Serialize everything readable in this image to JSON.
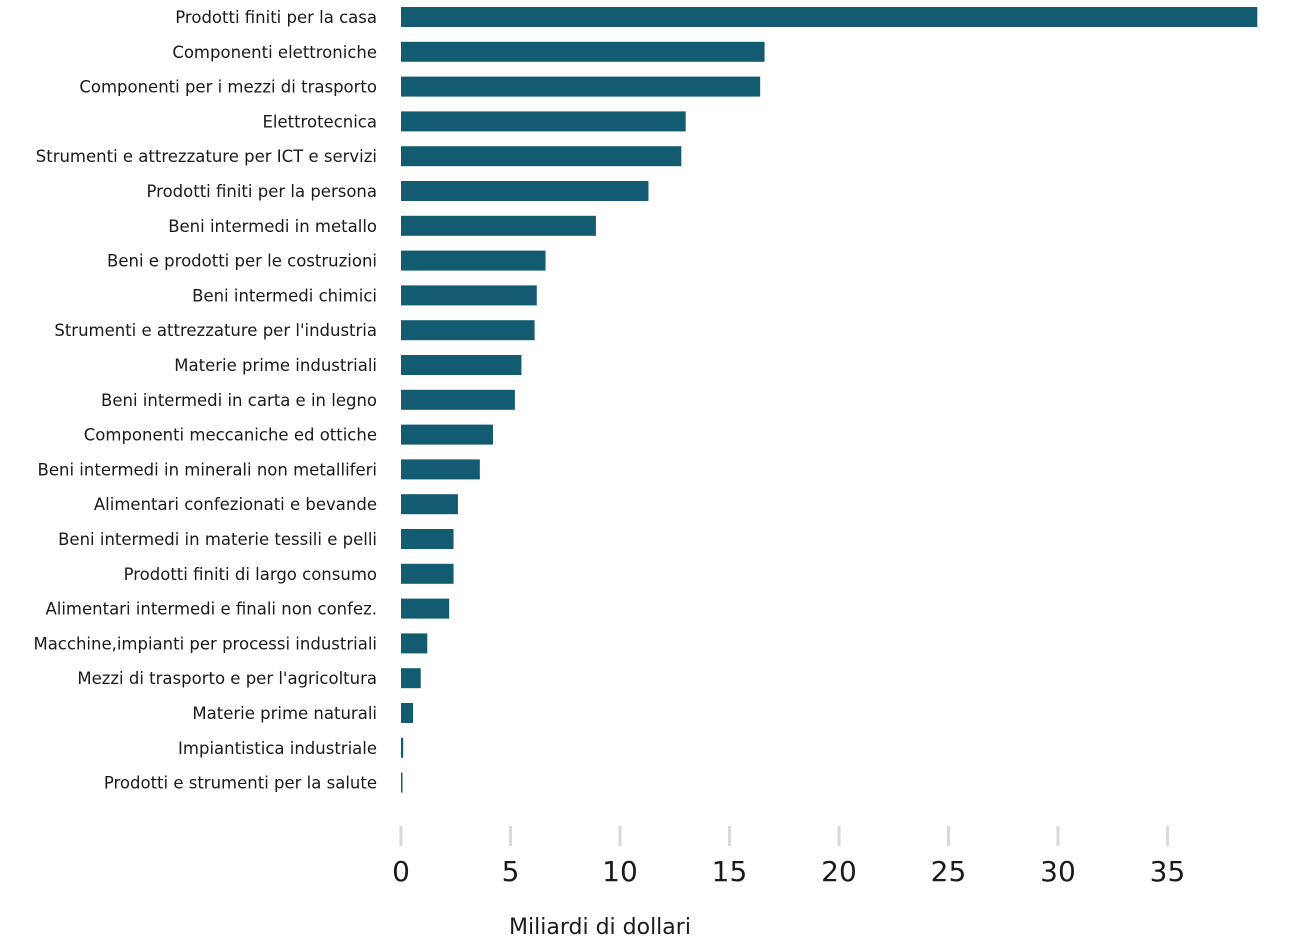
{
  "chart_data": {
    "type": "bar",
    "orientation": "horizontal",
    "categories": [
      "Prodotti finiti per la casa",
      "Componenti elettroniche",
      "Componenti per i mezzi di trasporto",
      "Elettrotecnica",
      "Strumenti e attrezzature per ICT e servizi",
      "Prodotti finiti per la persona",
      "Beni intermedi in metallo",
      "Beni e prodotti per le costruzioni",
      "Beni intermedi chimici",
      "Strumenti e attrezzature per l'industria",
      "Materie prime industriali",
      "Beni intermedi in carta e in legno",
      "Componenti meccaniche ed ottiche",
      "Beni intermedi in minerali non metalliferi",
      "Alimentari confezionati e bevande",
      "Beni intermedi in materie tessili e pelli",
      "Prodotti finiti di largo consumo",
      "Alimentari intermedi e finali non confez.",
      "Macchine,impianti per processi industriali",
      "Mezzi di trasporto e per l'agricoltura",
      "Materie prime naturali",
      "Impiantistica industriale",
      "Prodotti e strumenti per la salute"
    ],
    "values": [
      39.1,
      16.6,
      16.4,
      13.0,
      12.8,
      11.3,
      8.9,
      6.6,
      6.2,
      6.1,
      5.5,
      5.2,
      4.2,
      3.6,
      2.6,
      2.4,
      2.4,
      2.2,
      1.2,
      0.9,
      0.55,
      0.1,
      0.05
    ],
    "xlabel": "Miliardi di dollari",
    "ylabel": "",
    "title": "",
    "xlim": [
      0,
      39.1
    ],
    "xticks": [
      0,
      5,
      10,
      15,
      20,
      25,
      30,
      35
    ],
    "grid": false,
    "bar_color": "#135b70",
    "tick_color": "#d9d9d9",
    "text_color": "#1a1a1a"
  }
}
